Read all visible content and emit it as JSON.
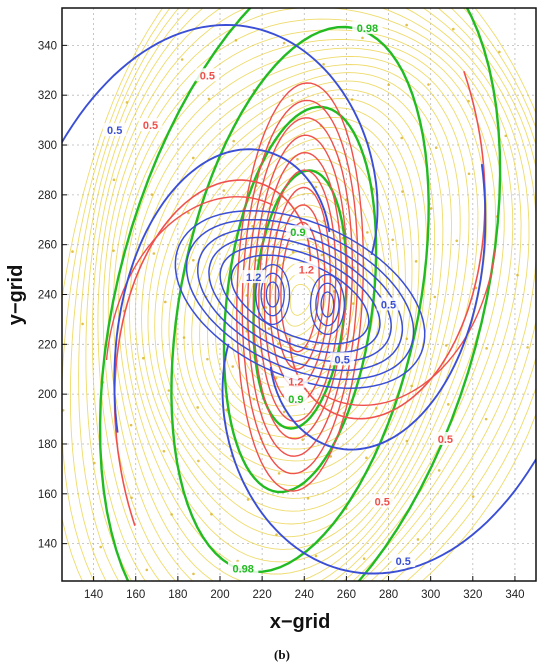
{
  "chart_data": {
    "type": "contour",
    "xlabel": "x−grid",
    "ylabel": "y−grid",
    "caption": "(b)",
    "xlim": [
      125,
      350
    ],
    "ylim": [
      125,
      355
    ],
    "x_ticks": [
      140,
      160,
      180,
      200,
      220,
      240,
      260,
      280,
      300,
      320,
      340
    ],
    "y_ticks": [
      140,
      160,
      180,
      200,
      220,
      240,
      260,
      280,
      300,
      320,
      340
    ],
    "grid": true,
    "center": [
      238,
      238
    ],
    "background": {
      "name": "streamlines",
      "color": "#e8cf3a",
      "description_visible": "dense yellow circulating streamlines"
    },
    "series": [
      {
        "color": "#22bb22",
        "levels": [
          0.98,
          0.9
        ],
        "labels": [
          {
            "text": "0.98",
            "x": 270,
            "y": 347
          },
          {
            "text": "0.98",
            "x": 211,
            "y": 130
          },
          {
            "text": "0.9",
            "x": 237,
            "y": 265
          },
          {
            "text": "0.9",
            "x": 236,
            "y": 198
          }
        ]
      },
      {
        "color": "#f0504c",
        "levels": [
          0.5,
          1.2
        ],
        "labels": [
          {
            "text": "0.5",
            "x": 194,
            "y": 328
          },
          {
            "text": "0.5",
            "x": 167,
            "y": 308
          },
          {
            "text": "1.2",
            "x": 241,
            "y": 250
          },
          {
            "text": "1.2",
            "x": 236,
            "y": 205
          },
          {
            "text": "0.5",
            "x": 307,
            "y": 182
          },
          {
            "text": "0.5",
            "x": 277,
            "y": 157
          }
        ]
      },
      {
        "color": "#3a4fd6",
        "levels": [
          0.5,
          1.2
        ],
        "labels": [
          {
            "text": "0.5",
            "x": 150,
            "y": 306
          },
          {
            "text": "0.5",
            "x": 280,
            "y": 236
          },
          {
            "text": "0.5",
            "x": 258,
            "y": 214
          },
          {
            "text": "1.2",
            "x": 216,
            "y": 247
          },
          {
            "text": "0.5",
            "x": 287,
            "y": 133
          }
        ]
      }
    ]
  }
}
